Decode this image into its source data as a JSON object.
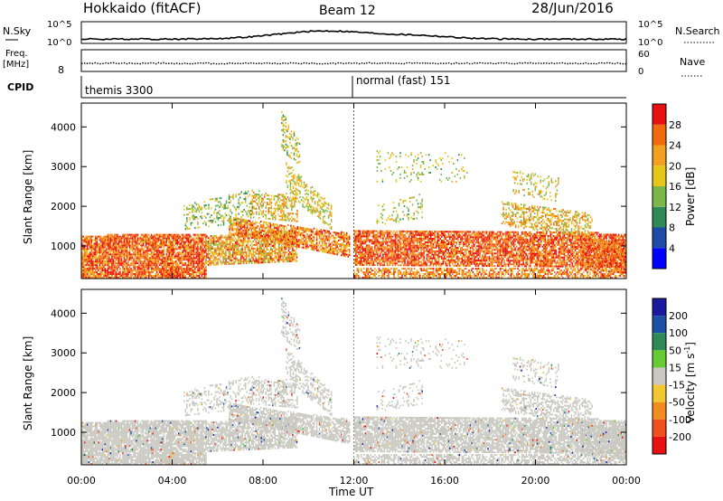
{
  "header": {
    "station": "Hokkaido (fitACF)",
    "beam": "Beam 12",
    "date": "28/Jun/2016"
  },
  "strip_labels": {
    "nsky": "N.Sky",
    "nsky_ticks": [
      "10^5",
      "10^0"
    ],
    "nsearch": "N.Search",
    "nsearch_ticks": [
      "10^5",
      "10^0"
    ],
    "freq": "Freq.",
    "freq_unit": "[MHz]",
    "freq_ticks": [
      "8"
    ],
    "nave": "Nave",
    "nave_ticks": [
      "60",
      "0"
    ],
    "cpid": "CPID"
  },
  "cpid_modes": [
    {
      "label": "themis 3300",
      "start_hour": 0
    },
    {
      "label": "normal (fast) 151",
      "start_hour": 12
    }
  ],
  "colors": {
    "power_scale": [
      "#0000ff",
      "#1e4aa8",
      "#2e8b57",
      "#7ab648",
      "#e6c619",
      "#f2a020",
      "#f06a10",
      "#e81010"
    ],
    "velocity_scale": [
      "#1a1aa0",
      "#1e50a8",
      "#2e8b57",
      "#66cc33",
      "#c8c8c0",
      "#f2c832",
      "#f28c1e",
      "#f0501e",
      "#e81010"
    ],
    "gray": "#c8c8c0"
  },
  "chart_data": [
    {
      "type": "heatmap",
      "panel": "power",
      "xlabel": "",
      "ylabel": "Slant Range [km]",
      "xlim": [
        0,
        24
      ],
      "ylim": [
        180,
        4600
      ],
      "yticks": [
        "4000",
        "3000",
        "2000",
        "1000"
      ],
      "ytick_values": [
        4000,
        3000,
        2000,
        1000
      ],
      "colorbar": {
        "label": "Power [dB]",
        "ticks": [
          "28",
          "24",
          "20",
          "16",
          "12",
          "8",
          "4"
        ],
        "range": [
          0,
          32
        ]
      }
    },
    {
      "type": "heatmap",
      "panel": "velocity",
      "xlabel": "Time UT",
      "ylabel": "Slant Range [km]",
      "xlim": [
        0,
        24
      ],
      "ylim": [
        180,
        4600
      ],
      "xticks": [
        "00:00",
        "04:00",
        "08:00",
        "12:00",
        "16:00",
        "20:00",
        "00:00"
      ],
      "xtick_values": [
        0,
        4,
        8,
        12,
        16,
        20,
        24
      ],
      "yticks": [
        "4000",
        "3000",
        "2000",
        "1000"
      ],
      "ytick_values": [
        4000,
        3000,
        2000,
        1000
      ],
      "colorbar": {
        "label": "Velocity [m s",
        "label_superscript": "-1",
        "label_close": "]",
        "ticks": [
          "200",
          "100",
          "50",
          "15",
          "-15",
          "-50",
          "-100",
          "-200"
        ]
      }
    }
  ]
}
